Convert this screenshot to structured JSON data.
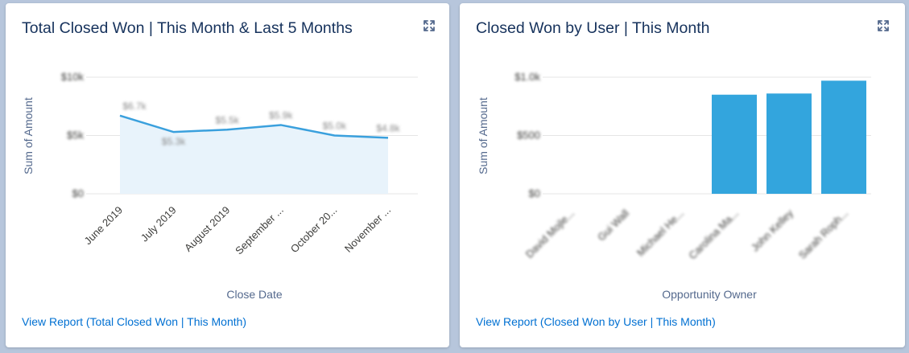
{
  "cards": [
    {
      "title": "Total Closed Won | This Month & Last 5 Months",
      "link": "View Report (Total Closed Won | This Month)"
    },
    {
      "title": "Closed Won by User | This Month",
      "link": "View Report (Closed Won by User | This Month)"
    }
  ],
  "icons": {
    "expand": "expand-icon"
  },
  "colors": {
    "line": "#3aa0dd",
    "area": "#e8f3fb",
    "bar": "#33a5dd",
    "link": "#0070d2",
    "title": "#16325c"
  },
  "chart_data": [
    {
      "type": "area",
      "xlabel": "Close Date",
      "ylabel": "Sum of Amount",
      "categories": [
        "June 2019",
        "July 2019",
        "August 2019",
        "September ...",
        "October 20...",
        "November ..."
      ],
      "values": [
        6.7,
        5.3,
        5.5,
        5.9,
        5.0,
        4.8
      ],
      "ylim": [
        0,
        10
      ],
      "y_tick_values": [
        0,
        5,
        10
      ],
      "tick_labels_blurred": true,
      "data_labels_blurred": true,
      "grid": true
    },
    {
      "type": "bar",
      "xlabel": "Opportunity Owner",
      "ylabel": "Sum of Amount",
      "categories": [
        "David Mojle...",
        "Gui Wall",
        "Michael He...",
        "Carolina Ma...",
        "John Kelley",
        "Sarah Roph..."
      ],
      "values": [
        0,
        0,
        0,
        0.85,
        0.86,
        0.97
      ],
      "ylim": [
        0,
        1
      ],
      "y_tick_values": [
        0,
        0.5,
        1
      ],
      "tick_labels_blurred": true,
      "grid": true
    }
  ]
}
